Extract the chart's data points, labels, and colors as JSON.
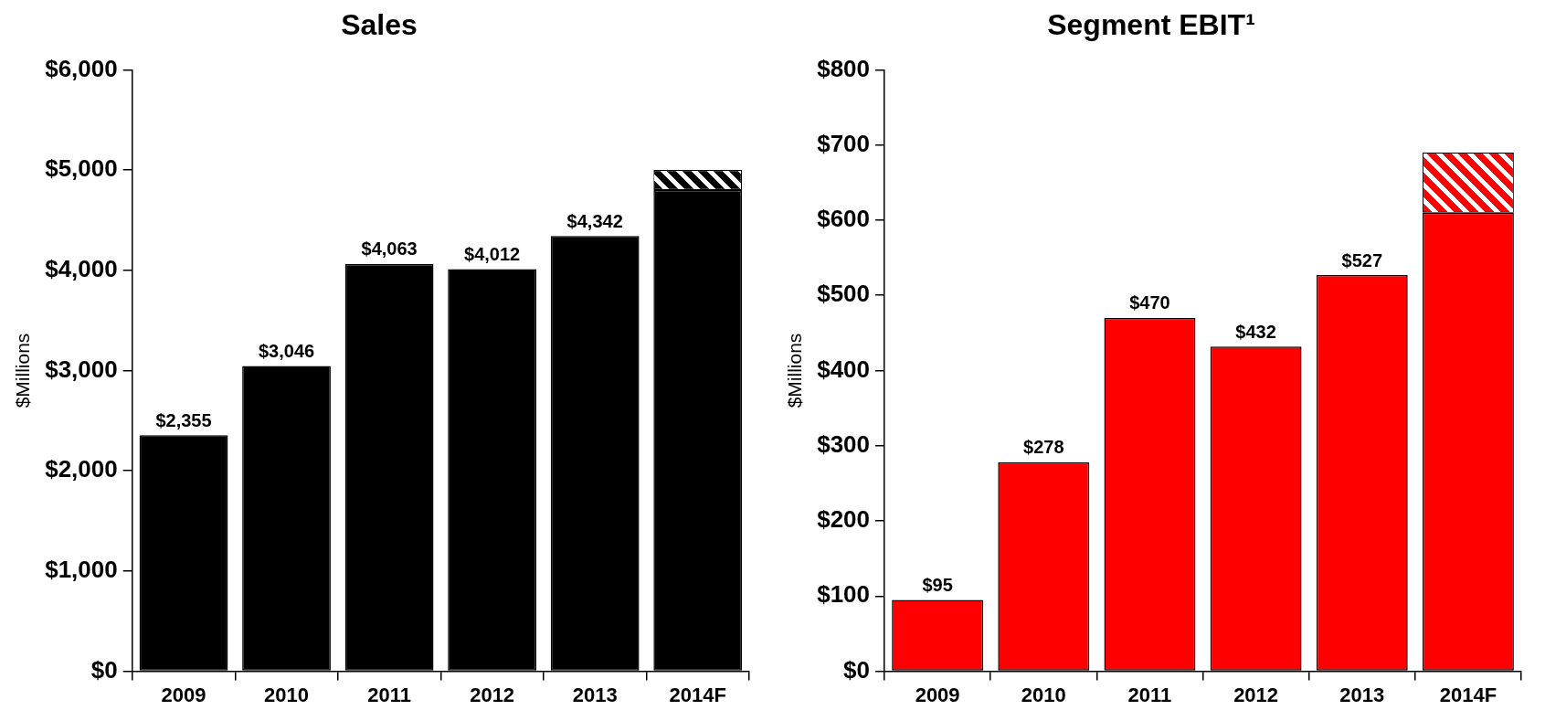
{
  "chart_data": [
    {
      "type": "bar",
      "title": "Sales",
      "ylabel": "$Millions",
      "categories": [
        "2009",
        "2010",
        "2011",
        "2012",
        "2013",
        "2014F"
      ],
      "stacked": true,
      "series": [
        {
          "color": "#000000",
          "values": [
            2355,
            3046,
            4063,
            4012,
            4342,
            4800
          ],
          "value_labels": [
            "$2,355",
            "$3,046",
            "$4,063",
            "$4,012",
            "$4,342",
            null
          ]
        },
        {
          "color": "#000000",
          "values": [
            null,
            null,
            null,
            null,
            null,
            200
          ]
        }
      ],
      "ylim": [
        0,
        6000
      ],
      "yticks": [
        {
          "value": 0,
          "label": "$0"
        },
        {
          "value": 1000,
          "label": "$1,000"
        },
        {
          "value": 2000,
          "label": "$2,000"
        },
        {
          "value": 3000,
          "label": "$3,000"
        },
        {
          "value": 4000,
          "label": "$4,000"
        },
        {
          "value": 5000,
          "label": "$5,000"
        },
        {
          "value": 6000,
          "label": "$6,000"
        }
      ],
      "grid": false,
      "legend": false
    },
    {
      "type": "bar",
      "title": "Segment EBIT¹",
      "ylabel": "$Millions",
      "categories": [
        "2009",
        "2010",
        "2011",
        "2012",
        "2013",
        "2014F"
      ],
      "stacked": true,
      "series": [
        {
          "color": "#ff0000",
          "values": [
            95,
            278,
            470,
            432,
            527,
            610
          ],
          "value_labels": [
            "$95",
            "$278",
            "$470",
            "$432",
            "$527",
            null
          ]
        },
        {
          "color": "#ff0000",
          "values": [
            null,
            null,
            null,
            null,
            null,
            80
          ]
        }
      ],
      "ylim": [
        0,
        800
      ],
      "yticks": [
        {
          "value": 0,
          "label": "$0"
        },
        {
          "value": 100,
          "label": "$100"
        },
        {
          "value": 200,
          "label": "$200"
        },
        {
          "value": 300,
          "label": "$300"
        },
        {
          "value": 400,
          "label": "$400"
        },
        {
          "value": 500,
          "label": "$500"
        },
        {
          "value": 600,
          "label": "$600"
        },
        {
          "value": 700,
          "label": "$700"
        },
        {
          "value": 800,
          "label": "$800"
        }
      ],
      "grid": false,
      "legend": false
    }
  ]
}
